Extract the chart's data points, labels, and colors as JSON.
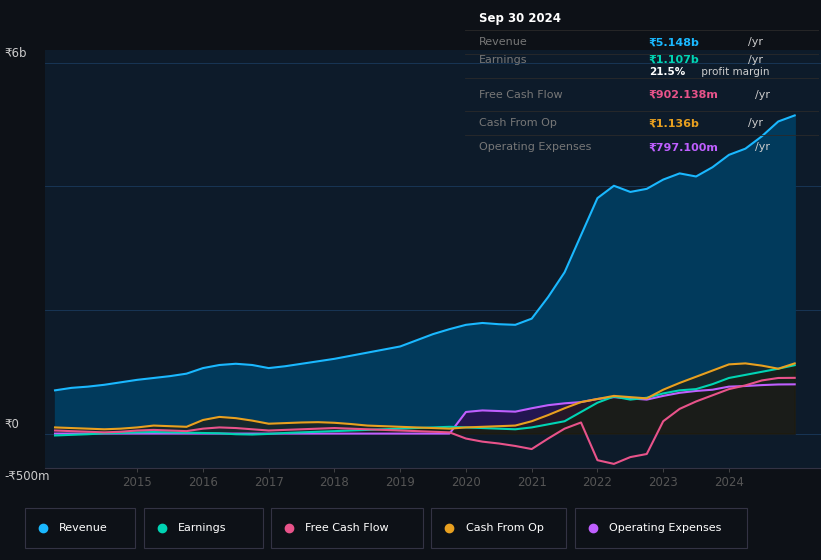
{
  "bg_color": "#0d1117",
  "plot_bg_color": "#0d1b2a",
  "grid_color": "#1e3a5f",
  "y_label_top": "₹6b",
  "y_label_zero": "₹0",
  "y_label_bottom": "-₹500m",
  "x_ticks": [
    2015,
    2016,
    2017,
    2018,
    2019,
    2020,
    2021,
    2022,
    2023,
    2024
  ],
  "ylim": [
    -550000000,
    6200000000
  ],
  "xlim_start": 2013.6,
  "xlim_end": 2025.4,
  "revenue": {
    "color": "#1ab8ff",
    "fill_color": "#003a5c",
    "label": "Revenue",
    "x": [
      2013.75,
      2014.0,
      2014.25,
      2014.5,
      2014.75,
      2015.0,
      2015.25,
      2015.5,
      2015.75,
      2016.0,
      2016.25,
      2016.5,
      2016.75,
      2017.0,
      2017.25,
      2017.5,
      2017.75,
      2018.0,
      2018.25,
      2018.5,
      2018.75,
      2019.0,
      2019.25,
      2019.5,
      2019.75,
      2020.0,
      2020.25,
      2020.5,
      2020.75,
      2021.0,
      2021.25,
      2021.5,
      2021.75,
      2022.0,
      2022.25,
      2022.5,
      2022.75,
      2023.0,
      2023.25,
      2023.5,
      2023.75,
      2024.0,
      2024.25,
      2024.5,
      2024.75,
      2025.0
    ],
    "y": [
      700000000,
      740000000,
      760000000,
      790000000,
      830000000,
      870000000,
      900000000,
      930000000,
      970000000,
      1060000000,
      1110000000,
      1130000000,
      1110000000,
      1060000000,
      1090000000,
      1130000000,
      1170000000,
      1210000000,
      1260000000,
      1310000000,
      1360000000,
      1410000000,
      1510000000,
      1610000000,
      1690000000,
      1760000000,
      1790000000,
      1770000000,
      1760000000,
      1860000000,
      2210000000,
      2610000000,
      3210000000,
      3810000000,
      4010000000,
      3910000000,
      3960000000,
      4110000000,
      4210000000,
      4160000000,
      4310000000,
      4510000000,
      4610000000,
      4810000000,
      5050000000,
      5148000000
    ]
  },
  "earnings": {
    "color": "#00d4b4",
    "label": "Earnings",
    "x": [
      2013.75,
      2014.0,
      2014.25,
      2014.5,
      2014.75,
      2015.0,
      2015.25,
      2015.5,
      2015.75,
      2016.0,
      2016.25,
      2016.5,
      2016.75,
      2017.0,
      2017.25,
      2017.5,
      2017.75,
      2018.0,
      2018.25,
      2018.5,
      2018.75,
      2019.0,
      2019.25,
      2019.5,
      2019.75,
      2020.0,
      2020.25,
      2020.5,
      2020.75,
      2021.0,
      2021.25,
      2021.5,
      2021.75,
      2022.0,
      2022.25,
      2022.5,
      2022.75,
      2023.0,
      2023.25,
      2023.5,
      2023.75,
      2024.0,
      2024.25,
      2024.5,
      2024.75,
      2025.0
    ],
    "y": [
      -30000000,
      -20000000,
      -10000000,
      5000000,
      10000000,
      20000000,
      25000000,
      20000000,
      15000000,
      10000000,
      5000000,
      -10000000,
      -15000000,
      -5000000,
      10000000,
      20000000,
      30000000,
      40000000,
      50000000,
      60000000,
      70000000,
      80000000,
      90000000,
      100000000,
      110000000,
      100000000,
      90000000,
      80000000,
      70000000,
      100000000,
      150000000,
      200000000,
      350000000,
      500000000,
      600000000,
      550000000,
      580000000,
      650000000,
      700000000,
      720000000,
      800000000,
      900000000,
      950000000,
      1000000000,
      1050000000,
      1107000000
    ]
  },
  "free_cash_flow": {
    "color": "#e8538a",
    "label": "Free Cash Flow",
    "x": [
      2013.75,
      2014.0,
      2014.25,
      2014.5,
      2014.75,
      2015.0,
      2015.25,
      2015.5,
      2015.75,
      2016.0,
      2016.25,
      2016.5,
      2016.75,
      2017.0,
      2017.25,
      2017.5,
      2017.75,
      2018.0,
      2018.25,
      2018.5,
      2018.75,
      2019.0,
      2019.25,
      2019.5,
      2019.75,
      2020.0,
      2020.25,
      2020.5,
      2020.75,
      2021.0,
      2021.25,
      2021.5,
      2021.75,
      2022.0,
      2022.25,
      2022.5,
      2022.75,
      2023.0,
      2023.25,
      2023.5,
      2023.75,
      2024.0,
      2024.25,
      2024.5,
      2024.75,
      2025.0
    ],
    "y": [
      50000000,
      40000000,
      30000000,
      20000000,
      30000000,
      50000000,
      60000000,
      50000000,
      40000000,
      80000000,
      100000000,
      90000000,
      70000000,
      50000000,
      60000000,
      70000000,
      80000000,
      90000000,
      80000000,
      70000000,
      60000000,
      50000000,
      40000000,
      30000000,
      20000000,
      -80000000,
      -130000000,
      -160000000,
      -200000000,
      -250000000,
      -80000000,
      80000000,
      180000000,
      -430000000,
      -490000000,
      -380000000,
      -330000000,
      200000000,
      400000000,
      520000000,
      620000000,
      720000000,
      780000000,
      860000000,
      900000000,
      902138000
    ]
  },
  "cash_from_op": {
    "color": "#e8a020",
    "label": "Cash From Op",
    "x": [
      2013.75,
      2014.0,
      2014.25,
      2014.5,
      2014.75,
      2015.0,
      2015.25,
      2015.5,
      2015.75,
      2016.0,
      2016.25,
      2016.5,
      2016.75,
      2017.0,
      2017.25,
      2017.5,
      2017.75,
      2018.0,
      2018.25,
      2018.5,
      2018.75,
      2019.0,
      2019.25,
      2019.5,
      2019.75,
      2020.0,
      2020.25,
      2020.5,
      2020.75,
      2021.0,
      2021.25,
      2021.5,
      2021.75,
      2022.0,
      2022.25,
      2022.5,
      2022.75,
      2023.0,
      2023.25,
      2023.5,
      2023.75,
      2024.0,
      2024.25,
      2024.5,
      2024.75,
      2025.0
    ],
    "y": [
      100000000,
      90000000,
      80000000,
      70000000,
      80000000,
      100000000,
      130000000,
      120000000,
      110000000,
      220000000,
      270000000,
      250000000,
      210000000,
      160000000,
      170000000,
      180000000,
      185000000,
      175000000,
      155000000,
      130000000,
      120000000,
      110000000,
      100000000,
      90000000,
      80000000,
      100000000,
      110000000,
      120000000,
      130000000,
      200000000,
      300000000,
      410000000,
      510000000,
      560000000,
      610000000,
      590000000,
      570000000,
      710000000,
      820000000,
      920000000,
      1020000000,
      1120000000,
      1136000000,
      1100000000,
      1050000000,
      1136000000
    ]
  },
  "operating_expenses": {
    "color": "#bf5fff",
    "label": "Operating Expenses",
    "x": [
      2013.75,
      2014.0,
      2014.25,
      2014.5,
      2014.75,
      2015.0,
      2015.25,
      2015.5,
      2015.75,
      2016.0,
      2016.25,
      2016.5,
      2016.75,
      2017.0,
      2017.25,
      2017.5,
      2017.75,
      2018.0,
      2018.25,
      2018.5,
      2018.75,
      2019.0,
      2019.25,
      2019.5,
      2019.75,
      2020.0,
      2020.25,
      2020.5,
      2020.75,
      2021.0,
      2021.25,
      2021.5,
      2021.75,
      2022.0,
      2022.25,
      2022.5,
      2022.75,
      2023.0,
      2023.25,
      2023.5,
      2023.75,
      2024.0,
      2024.25,
      2024.5,
      2024.75,
      2025.0
    ],
    "y": [
      0,
      0,
      0,
      0,
      0,
      0,
      0,
      0,
      0,
      0,
      0,
      0,
      0,
      0,
      0,
      0,
      0,
      0,
      0,
      0,
      0,
      0,
      0,
      0,
      0,
      350000000,
      375000000,
      365000000,
      355000000,
      410000000,
      460000000,
      490000000,
      510000000,
      560000000,
      590000000,
      570000000,
      550000000,
      610000000,
      660000000,
      690000000,
      710000000,
      760000000,
      770000000,
      785000000,
      795000000,
      797100000
    ]
  },
  "info_box": {
    "date": "Sep 30 2024",
    "revenue_val": "₹5.148b",
    "revenue_color": "#1ab8ff",
    "earnings_val": "₹1.107b",
    "earnings_color": "#00d4b4",
    "profit_margin": "21.5%",
    "fcf_val": "₹902.138m",
    "fcf_color": "#e8538a",
    "cash_op_val": "₹1.136b",
    "cash_op_color": "#e8a020",
    "op_exp_val": "₹797.100m",
    "op_exp_color": "#bf5fff"
  },
  "legend_items": [
    {
      "label": "Revenue",
      "color": "#1ab8ff"
    },
    {
      "label": "Earnings",
      "color": "#00d4b4"
    },
    {
      "label": "Free Cash Flow",
      "color": "#e8538a"
    },
    {
      "label": "Cash From Op",
      "color": "#e8a020"
    },
    {
      "label": "Operating Expenses",
      "color": "#bf5fff"
    }
  ]
}
